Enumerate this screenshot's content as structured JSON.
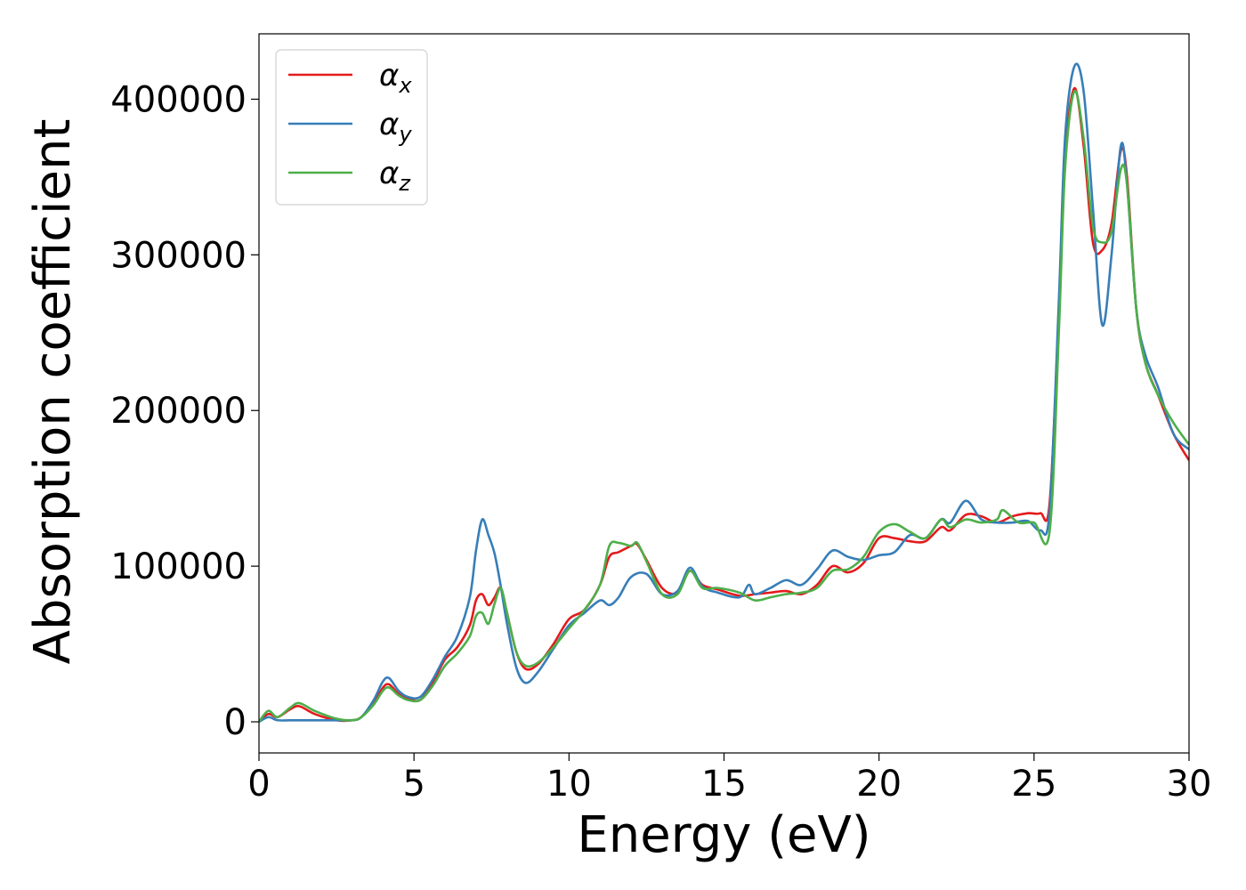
{
  "chart_data": {
    "type": "line",
    "xlabel": "Energy (eV)",
    "ylabel": "Absorption coefficient",
    "xlim": [
      0,
      30
    ],
    "ylim": [
      -20000,
      442000
    ],
    "xticks": [
      0,
      5,
      10,
      15,
      20,
      25,
      30
    ],
    "yticks": [
      0,
      100000,
      200000,
      300000,
      400000
    ],
    "xtick_labels": [
      "0",
      "5",
      "10",
      "15",
      "20",
      "25",
      "30"
    ],
    "ytick_labels": [
      "0",
      "100000",
      "200000",
      "300000",
      "400000"
    ],
    "grid": false,
    "legend_position": "top-left",
    "series": [
      {
        "name": "α_x",
        "legend_symbol": "α",
        "legend_subscript": "x",
        "color": "#e41a1c",
        "x": [
          0,
          0.3,
          0.6,
          1.0,
          1.3,
          1.8,
          2.5,
          3.0,
          3.3,
          3.7,
          4.0,
          4.2,
          4.5,
          4.8,
          5.2,
          5.6,
          6.0,
          6.4,
          6.8,
          7.0,
          7.2,
          7.4,
          7.6,
          7.8,
          8.0,
          8.3,
          8.6,
          9.0,
          9.5,
          10.0,
          10.5,
          11.0,
          11.3,
          11.6,
          12.0,
          12.2,
          12.5,
          13.0,
          13.5,
          13.9,
          14.3,
          14.8,
          15.5,
          16.0,
          16.5,
          17.0,
          17.5,
          18.0,
          18.5,
          19.0,
          19.5,
          20.0,
          20.5,
          21.0,
          21.5,
          22.0,
          22.3,
          22.8,
          23.3,
          23.8,
          24.3,
          24.8,
          25.2,
          25.5,
          25.8,
          26.0,
          26.3,
          26.6,
          26.9,
          27.2,
          27.5,
          27.8,
          28.0,
          28.3,
          28.6,
          29.0,
          29.5,
          30.0
        ],
        "values": [
          0,
          5000,
          3000,
          8000,
          10000,
          5000,
          1000,
          1000,
          3000,
          12000,
          22000,
          24000,
          18000,
          15000,
          14000,
          25000,
          40000,
          48000,
          62000,
          78000,
          82000,
          75000,
          80000,
          86000,
          70000,
          45000,
          34000,
          37000,
          50000,
          66000,
          72000,
          88000,
          106000,
          109000,
          113000,
          114000,
          104000,
          86000,
          83000,
          97000,
          88000,
          85000,
          81000,
          82000,
          83000,
          84000,
          82000,
          88000,
          100000,
          96000,
          102000,
          118000,
          118000,
          116000,
          116000,
          125000,
          123000,
          133000,
          132000,
          128000,
          132000,
          134000,
          134000,
          140000,
          260000,
          360000,
          407000,
          370000,
          308000,
          303000,
          320000,
          367000,
          350000,
          265000,
          230000,
          210000,
          185000,
          168000
        ]
      },
      {
        "name": "α_y",
        "legend_symbol": "α",
        "legend_subscript": "y",
        "color": "#377eb8",
        "x": [
          0,
          0.3,
          0.6,
          1.0,
          1.5,
          2.0,
          2.5,
          3.0,
          3.3,
          3.7,
          4.0,
          4.2,
          4.5,
          4.8,
          5.2,
          5.6,
          6.0,
          6.4,
          6.8,
          7.0,
          7.2,
          7.4,
          7.6,
          7.8,
          8.0,
          8.3,
          8.6,
          9.0,
          9.5,
          10.0,
          10.5,
          11.0,
          11.3,
          11.6,
          12.0,
          12.5,
          13.0,
          13.5,
          13.9,
          14.3,
          14.8,
          15.5,
          15.8,
          16.0,
          16.5,
          17.0,
          17.5,
          18.0,
          18.5,
          19.0,
          19.5,
          20.0,
          20.5,
          21.0,
          21.5,
          22.0,
          22.3,
          22.8,
          23.3,
          23.8,
          24.3,
          24.8,
          25.2,
          25.5,
          25.8,
          26.0,
          26.3,
          26.6,
          26.9,
          27.2,
          27.5,
          27.8,
          28.0,
          28.3,
          28.6,
          29.0,
          29.5,
          30.0
        ],
        "values": [
          0,
          3000,
          1000,
          1000,
          1000,
          1000,
          1000,
          1000,
          3000,
          14000,
          26000,
          28000,
          20000,
          16000,
          16000,
          27000,
          42000,
          55000,
          80000,
          110000,
          130000,
          120000,
          108000,
          87000,
          63000,
          35000,
          25000,
          32000,
          47000,
          62000,
          70000,
          78000,
          75000,
          80000,
          93000,
          95000,
          82000,
          84000,
          99000,
          87000,
          83000,
          80000,
          88000,
          82000,
          86000,
          91000,
          88000,
          98000,
          110000,
          106000,
          104000,
          107000,
          109000,
          120000,
          118000,
          130000,
          128000,
          142000,
          130000,
          128000,
          128000,
          129000,
          123000,
          135000,
          270000,
          375000,
          421000,
          405000,
          330000,
          255000,
          300000,
          370000,
          345000,
          265000,
          235000,
          215000,
          185000,
          175000
        ]
      },
      {
        "name": "α_z",
        "legend_symbol": "α",
        "legend_subscript": "z",
        "color": "#4daf4a",
        "x": [
          0,
          0.3,
          0.6,
          1.0,
          1.3,
          1.8,
          2.5,
          3.0,
          3.3,
          3.7,
          4.0,
          4.2,
          4.5,
          4.8,
          5.2,
          5.6,
          6.0,
          6.4,
          6.8,
          7.0,
          7.2,
          7.4,
          7.6,
          7.8,
          8.0,
          8.3,
          8.6,
          9.0,
          9.5,
          10.0,
          10.5,
          11.0,
          11.3,
          11.6,
          12.0,
          12.2,
          12.5,
          13.0,
          13.5,
          13.9,
          14.3,
          14.8,
          15.5,
          16.0,
          16.5,
          17.0,
          17.5,
          18.0,
          18.5,
          19.0,
          19.5,
          20.0,
          20.5,
          21.0,
          21.5,
          22.0,
          22.3,
          22.8,
          23.3,
          23.8,
          24.0,
          24.5,
          25.0,
          25.5,
          25.8,
          26.0,
          26.3,
          26.6,
          26.9,
          27.2,
          27.5,
          27.8,
          28.0,
          28.3,
          28.6,
          29.0,
          29.5,
          30.0
        ],
        "values": [
          0,
          7000,
          3000,
          9000,
          12000,
          7000,
          2000,
          1000,
          3000,
          11000,
          20000,
          22000,
          17000,
          14000,
          14000,
          23000,
          36000,
          44000,
          55000,
          68000,
          70000,
          63000,
          76000,
          86000,
          70000,
          45000,
          36000,
          38000,
          48000,
          60000,
          72000,
          88000,
          113000,
          115000,
          113000,
          115000,
          103000,
          82000,
          82000,
          97000,
          86000,
          86000,
          83000,
          78000,
          80000,
          82000,
          83000,
          86000,
          97000,
          98000,
          106000,
          122000,
          127000,
          122000,
          118000,
          130000,
          125000,
          130000,
          128000,
          130000,
          136000,
          128000,
          128000,
          122000,
          250000,
          355000,
          405000,
          375000,
          318000,
          308000,
          315000,
          355000,
          345000,
          265000,
          230000,
          210000,
          192000,
          178000
        ]
      }
    ]
  }
}
